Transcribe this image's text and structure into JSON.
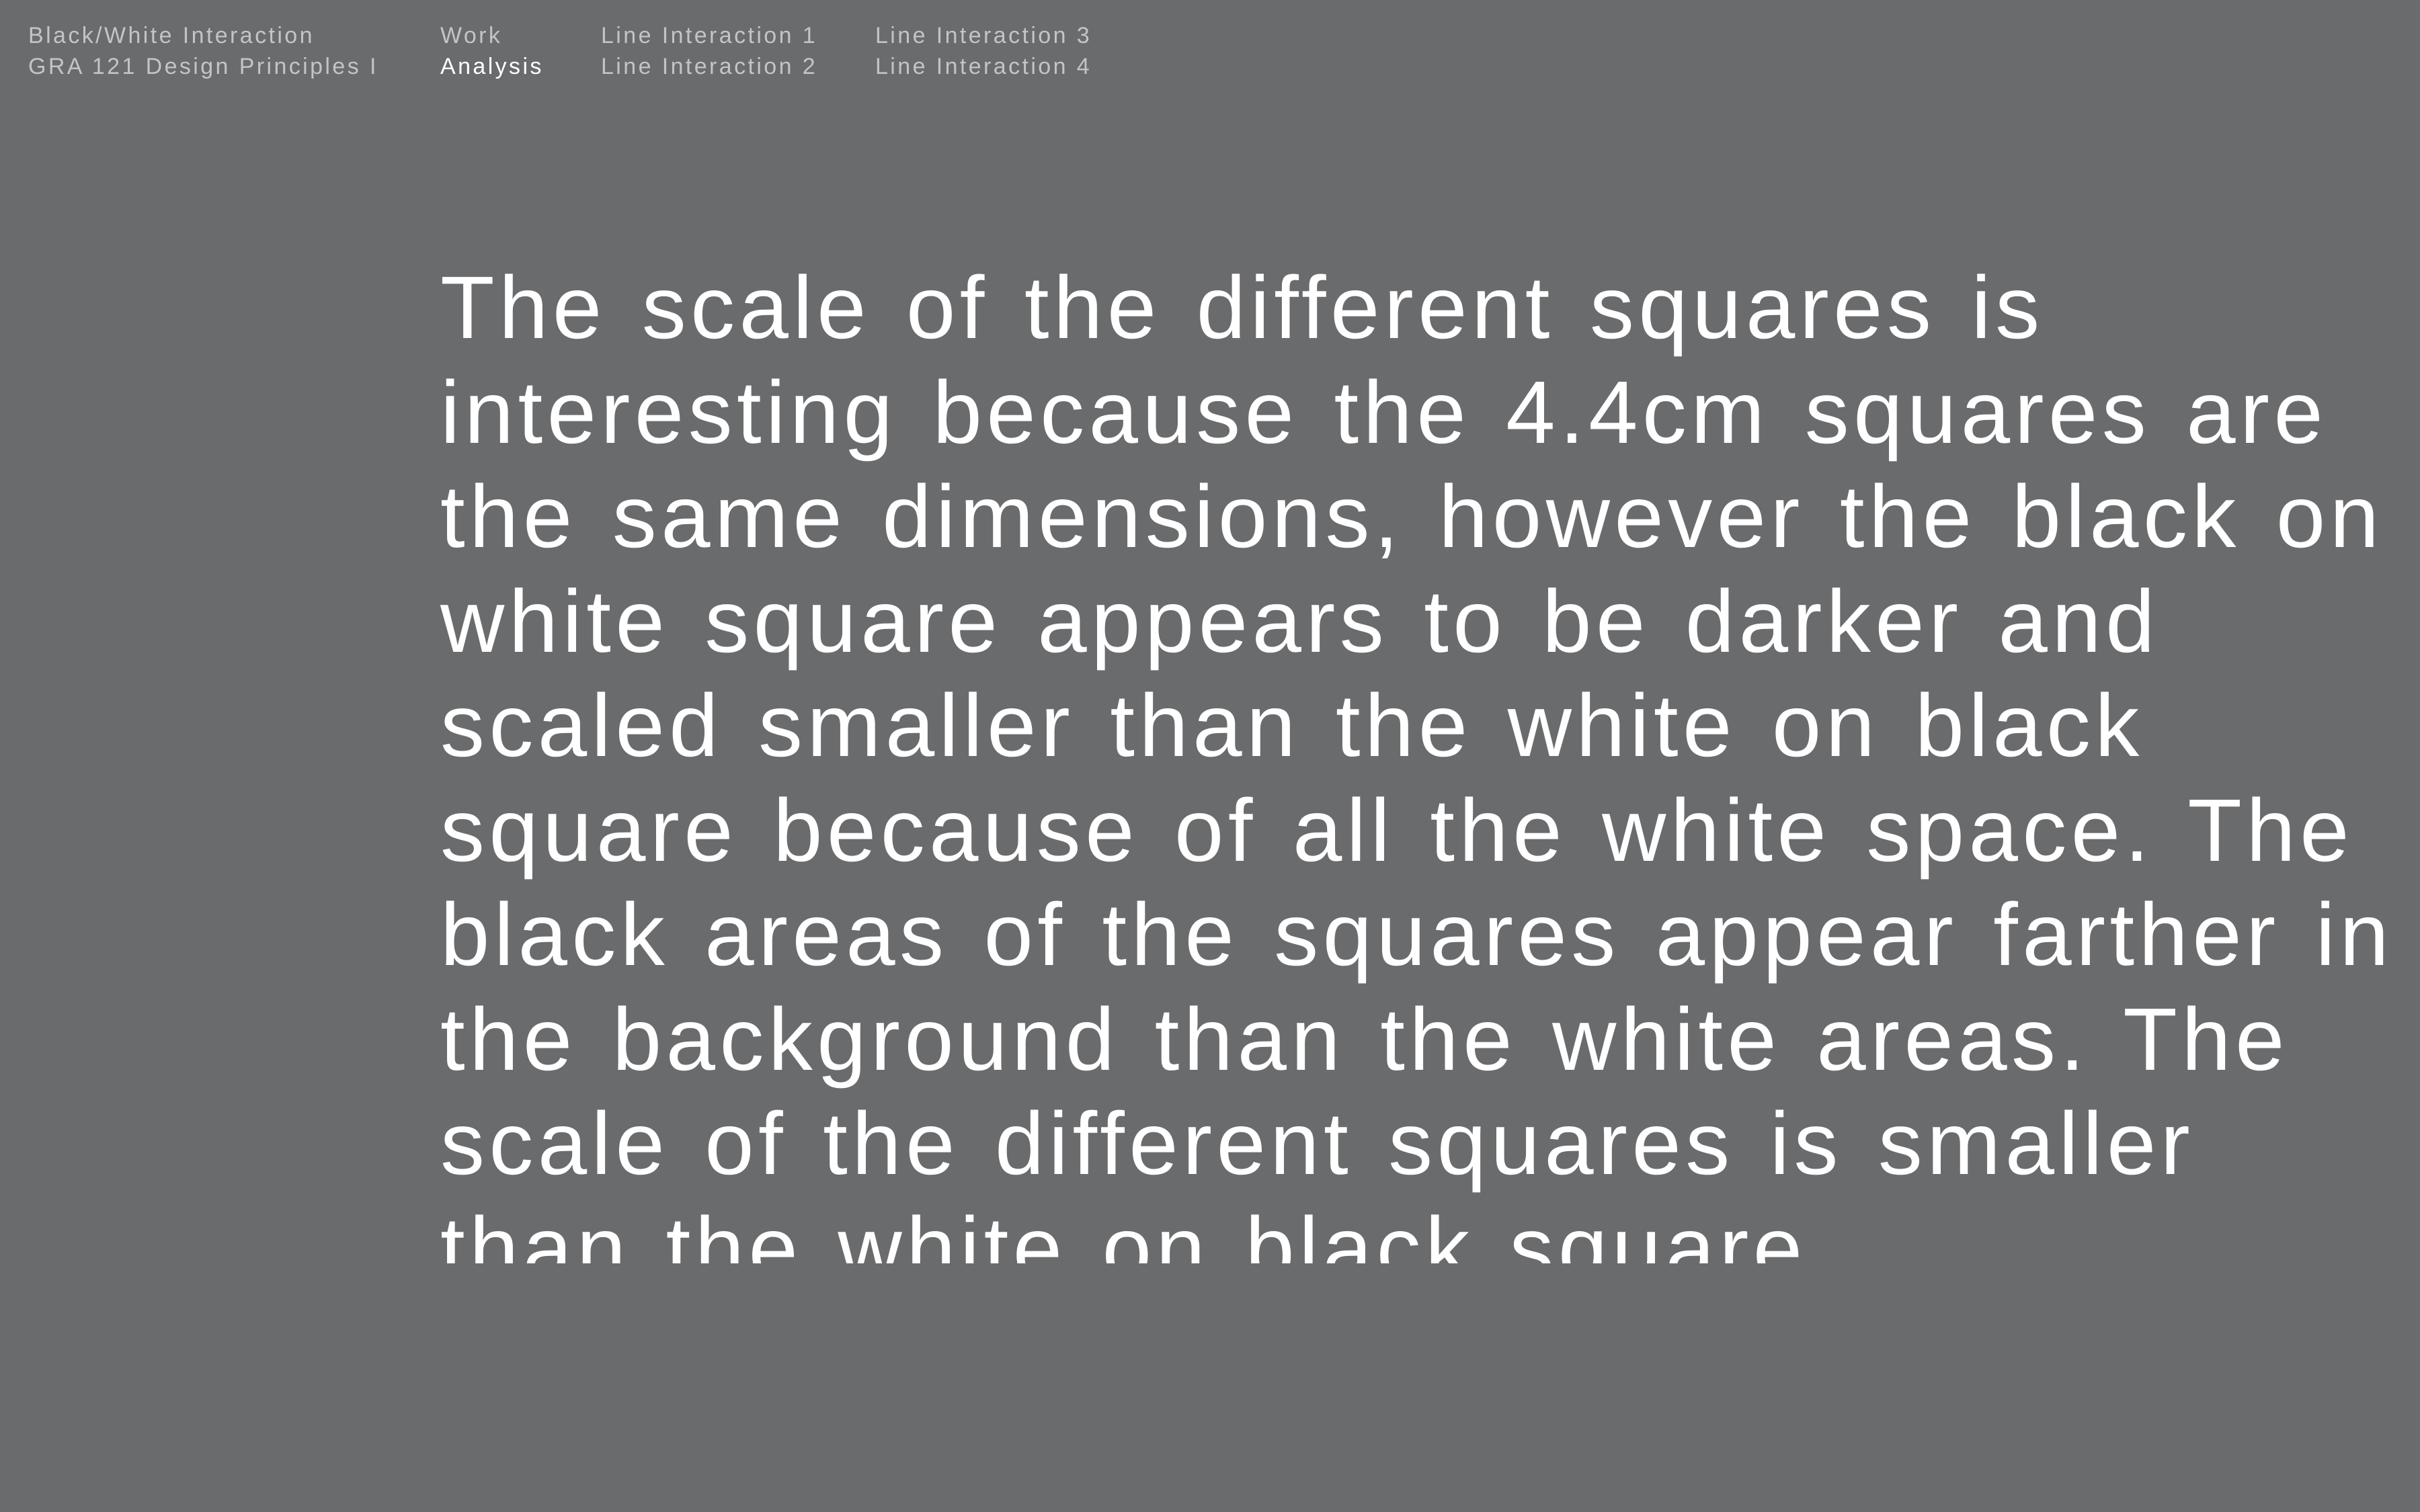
{
  "site": {
    "title": "Black/White Interaction",
    "course": "GRA 121 Design Principles I"
  },
  "nav": {
    "main": [
      {
        "label": "Work"
      },
      {
        "label": "Analysis"
      }
    ],
    "lines_col1": [
      {
        "label": "Line Interaction 1"
      },
      {
        "label": "Line Interaction 2"
      }
    ],
    "lines_col2": [
      {
        "label": "Line Interaction 3"
      },
      {
        "label": "Line Interaction 4"
      }
    ]
  },
  "article": {
    "text": "The scale of the different squares is interesting because the 4.4cm squares are the same dimensions, however the black on white square appears to be darker and scaled smaller than the white on black square because of all the white space. The black areas of the squares appear farther in the background than the white areas. The scale of the different squares is smaller than the white on black square"
  },
  "colors": {
    "background": "#6a6b6d",
    "text": "#ffffff",
    "nav_text": "#c3c4c6"
  }
}
